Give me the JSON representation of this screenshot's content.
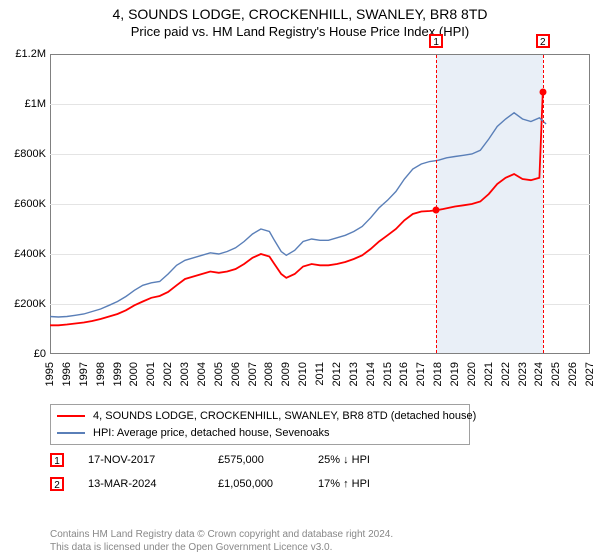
{
  "title": "4, SOUNDS LODGE, CROCKENHILL, SWANLEY, BR8 8TD",
  "subtitle": "Price paid vs. HM Land Registry's House Price Index (HPI)",
  "chart": {
    "type": "line",
    "background_color": "#ffffff",
    "border_color": "#808080",
    "grid_color": "#e4e4e4",
    "shade_color": "#e9eff7",
    "x_min": 1995,
    "x_max": 2027,
    "y_min": 0,
    "y_max": 1200000,
    "y_ticks": [
      {
        "v": 0,
        "label": "£0"
      },
      {
        "v": 200000,
        "label": "£200K"
      },
      {
        "v": 400000,
        "label": "£400K"
      },
      {
        "v": 600000,
        "label": "£600K"
      },
      {
        "v": 800000,
        "label": "£800K"
      },
      {
        "v": 1000000,
        "label": "£1M"
      },
      {
        "v": 1200000,
        "label": "£1.2M"
      }
    ],
    "x_ticks": [
      1995,
      1996,
      1997,
      1998,
      1999,
      2000,
      2001,
      2002,
      2003,
      2004,
      2005,
      2006,
      2007,
      2008,
      2009,
      2010,
      2011,
      2012,
      2013,
      2014,
      2015,
      2016,
      2017,
      2018,
      2019,
      2020,
      2021,
      2022,
      2023,
      2024,
      2025,
      2026,
      2027
    ],
    "shade_start": 2017.88,
    "shade_end": 2024.2,
    "markers": [
      {
        "num": "1",
        "x": 2017.88,
        "top": true,
        "point_y": 575000
      },
      {
        "num": "2",
        "x": 2024.2,
        "top": true,
        "point_y": 1050000
      }
    ],
    "series": [
      {
        "name": "price_paid",
        "color": "#ff0000",
        "width": 1.8,
        "legend": "4, SOUNDS LODGE, CROCKENHILL, SWANLEY, BR8 8TD (detached house)",
        "data": [
          [
            1995.0,
            115000
          ],
          [
            1995.5,
            115000
          ],
          [
            1996.0,
            118000
          ],
          [
            1996.5,
            122000
          ],
          [
            1997.0,
            126000
          ],
          [
            1997.5,
            132000
          ],
          [
            1998.0,
            140000
          ],
          [
            1998.5,
            150000
          ],
          [
            1999.0,
            160000
          ],
          [
            1999.5,
            175000
          ],
          [
            2000.0,
            195000
          ],
          [
            2000.5,
            210000
          ],
          [
            2001.0,
            225000
          ],
          [
            2001.5,
            232000
          ],
          [
            2002.0,
            248000
          ],
          [
            2002.5,
            275000
          ],
          [
            2003.0,
            300000
          ],
          [
            2003.5,
            310000
          ],
          [
            2004.0,
            320000
          ],
          [
            2004.5,
            330000
          ],
          [
            2005.0,
            325000
          ],
          [
            2005.5,
            330000
          ],
          [
            2006.0,
            340000
          ],
          [
            2006.5,
            360000
          ],
          [
            2007.0,
            385000
          ],
          [
            2007.5,
            400000
          ],
          [
            2008.0,
            390000
          ],
          [
            2008.3,
            360000
          ],
          [
            2008.7,
            320000
          ],
          [
            2009.0,
            305000
          ],
          [
            2009.5,
            320000
          ],
          [
            2010.0,
            350000
          ],
          [
            2010.5,
            360000
          ],
          [
            2011.0,
            355000
          ],
          [
            2011.5,
            355000
          ],
          [
            2012.0,
            360000
          ],
          [
            2012.5,
            368000
          ],
          [
            2013.0,
            380000
          ],
          [
            2013.5,
            395000
          ],
          [
            2014.0,
            420000
          ],
          [
            2014.5,
            450000
          ],
          [
            2015.0,
            475000
          ],
          [
            2015.5,
            500000
          ],
          [
            2016.0,
            535000
          ],
          [
            2016.5,
            560000
          ],
          [
            2017.0,
            570000
          ],
          [
            2017.5,
            572000
          ],
          [
            2017.88,
            575000
          ],
          [
            2018.3,
            580000
          ],
          [
            2019.0,
            590000
          ],
          [
            2019.5,
            595000
          ],
          [
            2020.0,
            600000
          ],
          [
            2020.5,
            610000
          ],
          [
            2021.0,
            640000
          ],
          [
            2021.5,
            680000
          ],
          [
            2022.0,
            705000
          ],
          [
            2022.5,
            720000
          ],
          [
            2023.0,
            700000
          ],
          [
            2023.5,
            695000
          ],
          [
            2024.0,
            705000
          ],
          [
            2024.2,
            1050000
          ]
        ]
      },
      {
        "name": "hpi",
        "color": "#5a7fb8",
        "width": 1.4,
        "legend": "HPI: Average price, detached house, Sevenoaks",
        "data": [
          [
            1995.0,
            150000
          ],
          [
            1995.5,
            148000
          ],
          [
            1996.0,
            150000
          ],
          [
            1996.5,
            155000
          ],
          [
            1997.0,
            160000
          ],
          [
            1997.5,
            170000
          ],
          [
            1998.0,
            180000
          ],
          [
            1998.5,
            195000
          ],
          [
            1999.0,
            210000
          ],
          [
            1999.5,
            230000
          ],
          [
            2000.0,
            255000
          ],
          [
            2000.5,
            275000
          ],
          [
            2001.0,
            285000
          ],
          [
            2001.5,
            290000
          ],
          [
            2002.0,
            320000
          ],
          [
            2002.5,
            355000
          ],
          [
            2003.0,
            375000
          ],
          [
            2003.5,
            385000
          ],
          [
            2004.0,
            395000
          ],
          [
            2004.5,
            405000
          ],
          [
            2005.0,
            400000
          ],
          [
            2005.5,
            410000
          ],
          [
            2006.0,
            425000
          ],
          [
            2006.5,
            450000
          ],
          [
            2007.0,
            480000
          ],
          [
            2007.5,
            500000
          ],
          [
            2008.0,
            490000
          ],
          [
            2008.3,
            455000
          ],
          [
            2008.7,
            410000
          ],
          [
            2009.0,
            395000
          ],
          [
            2009.5,
            415000
          ],
          [
            2010.0,
            450000
          ],
          [
            2010.5,
            460000
          ],
          [
            2011.0,
            455000
          ],
          [
            2011.5,
            455000
          ],
          [
            2012.0,
            465000
          ],
          [
            2012.5,
            475000
          ],
          [
            2013.0,
            490000
          ],
          [
            2013.5,
            510000
          ],
          [
            2014.0,
            545000
          ],
          [
            2014.5,
            585000
          ],
          [
            2015.0,
            615000
          ],
          [
            2015.5,
            650000
          ],
          [
            2016.0,
            700000
          ],
          [
            2016.5,
            740000
          ],
          [
            2017.0,
            760000
          ],
          [
            2017.5,
            770000
          ],
          [
            2018.0,
            775000
          ],
          [
            2018.5,
            785000
          ],
          [
            2019.0,
            790000
          ],
          [
            2019.5,
            795000
          ],
          [
            2020.0,
            800000
          ],
          [
            2020.5,
            815000
          ],
          [
            2021.0,
            860000
          ],
          [
            2021.5,
            910000
          ],
          [
            2022.0,
            940000
          ],
          [
            2022.5,
            965000
          ],
          [
            2023.0,
            940000
          ],
          [
            2023.5,
            930000
          ],
          [
            2024.0,
            945000
          ],
          [
            2024.4,
            920000
          ]
        ]
      }
    ]
  },
  "sales": [
    {
      "num": "1",
      "date": "17-NOV-2017",
      "price": "£575,000",
      "delta": "25% ↓ HPI"
    },
    {
      "num": "2",
      "date": "13-MAR-2024",
      "price": "£1,050,000",
      "delta": "17% ↑ HPI"
    }
  ],
  "footer_line1": "Contains HM Land Registry data © Crown copyright and database right 2024.",
  "footer_line2": "This data is licensed under the Open Government Licence v3.0."
}
